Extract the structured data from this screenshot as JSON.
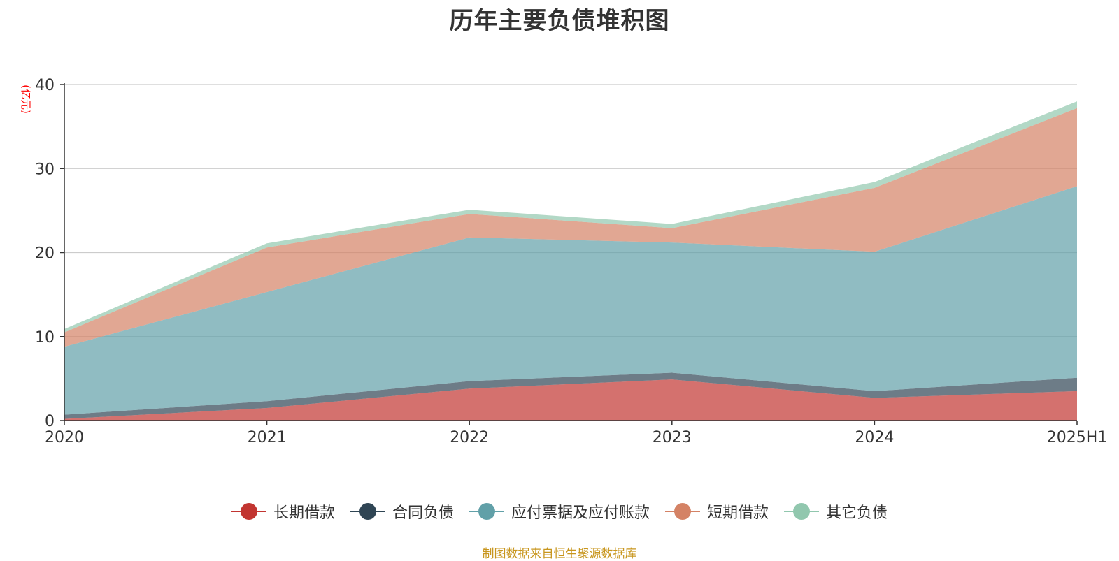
{
  "chart_data": {
    "type": "area",
    "stacked": true,
    "title": "历年主要负债堆积图",
    "ylabel": "(亿元)",
    "xlabel": "",
    "categories": [
      "2020",
      "2021",
      "2022",
      "2023",
      "2024",
      "2025H1"
    ],
    "ylim": [
      0,
      40
    ],
    "yticks": [
      0,
      10,
      20,
      30,
      40
    ],
    "grid": true,
    "legend_position": "bottom",
    "series": [
      {
        "name": "长期借款",
        "color": "#c23531",
        "values": [
          0.2,
          1.5,
          3.8,
          4.9,
          2.7,
          3.5
        ]
      },
      {
        "name": "合同负债",
        "color": "#2f4554",
        "values": [
          0.5,
          0.8,
          0.9,
          0.8,
          0.8,
          1.6
        ]
      },
      {
        "name": "应付票据及应付账款",
        "color": "#61a0a8",
        "values": [
          8.1,
          13.0,
          17.1,
          15.5,
          16.6,
          22.8
        ]
      },
      {
        "name": "短期借款",
        "color": "#d48265",
        "values": [
          1.7,
          5.3,
          2.8,
          1.7,
          7.6,
          9.3
        ]
      },
      {
        "name": "其它负债",
        "color": "#91c7ae",
        "values": [
          0.4,
          0.5,
          0.5,
          0.5,
          0.7,
          0.8
        ]
      }
    ],
    "source_note": "制图数据来自恒生聚源数据库"
  }
}
